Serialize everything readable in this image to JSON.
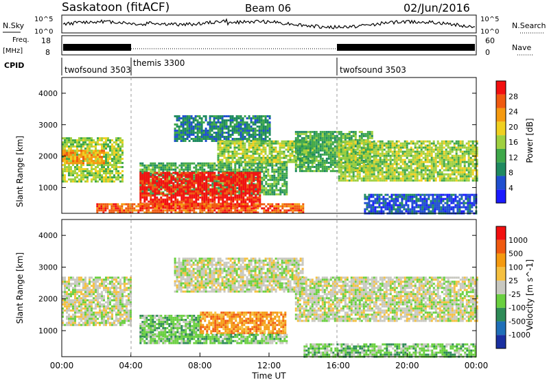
{
  "header": {
    "station": "Saskatoon (fitACF)",
    "beam": "Beam 06",
    "date": "02/Jun/2016"
  },
  "noise_panel": {
    "left_label": "N.Sky",
    "left_ticks": [
      "10^5",
      "10^0"
    ],
    "right_label": "N.Search",
    "right_ticks": [
      "10^5",
      "10^0"
    ]
  },
  "freq_panel": {
    "left_label_1": "Freq.",
    "left_label_2": "[MHz]",
    "left_ticks": [
      "18",
      "8"
    ],
    "right_label": "Nave",
    "right_ticks": [
      "60",
      "0"
    ]
  },
  "cpid_panel": {
    "label": "CPID",
    "segments": [
      {
        "name": "twofsound 3503",
        "start": 0,
        "end": 4
      },
      {
        "name": "themis 3300",
        "start": 4,
        "end": 16
      },
      {
        "name": "twofsound 3503",
        "start": 16,
        "end": 24
      }
    ]
  },
  "colors": {
    "power": [
      "#1a1aff",
      "#1f4fd0",
      "#1f8a60",
      "#3fa84a",
      "#9fd040",
      "#f0d020",
      "#f59a10",
      "#f05a10",
      "#f21010"
    ],
    "velocity": [
      "#1a2fa0",
      "#1f6fb8",
      "#2e8b57",
      "#6ad040",
      "#c8c8c0",
      "#f5c040",
      "#f59a10",
      "#f05a10",
      "#f21010"
    ]
  },
  "chart_data": [
    {
      "type": "heatmap",
      "title": "",
      "xlabel": "",
      "ylabel": "Slant Range [km]",
      "x_ticks": [],
      "y_ticks": [
        "1000",
        "2000",
        "3000",
        "4000"
      ],
      "xlim": [
        0,
        24
      ],
      "ylim": [
        180,
        4500
      ],
      "colorbar": {
        "label": "Power [dB]",
        "ticks": [
          "4",
          "8",
          "12",
          "16",
          "20",
          "24",
          "28"
        ]
      },
      "regions": [
        {
          "t0": 0.0,
          "t1": 3.5,
          "r0": 1200,
          "r1": 2600,
          "level": 4
        },
        {
          "t0": 0.0,
          "t1": 2.5,
          "r0": 1800,
          "r1": 2200,
          "level": 6
        },
        {
          "t0": 4.5,
          "t1": 13.0,
          "r0": 800,
          "r1": 1800,
          "level": 3
        },
        {
          "t0": 4.5,
          "t1": 11.5,
          "r0": 350,
          "r1": 1500,
          "level": 8
        },
        {
          "t0": 6.5,
          "t1": 12.0,
          "r0": 2500,
          "r1": 3300,
          "level": 2
        },
        {
          "t0": 9.0,
          "t1": 14.5,
          "r0": 1800,
          "r1": 2500,
          "level": 4
        },
        {
          "t0": 13.5,
          "t1": 18.0,
          "r0": 1500,
          "r1": 2800,
          "level": 3
        },
        {
          "t0": 16.0,
          "t1": 24.0,
          "r0": 1200,
          "r1": 2500,
          "level": 4
        },
        {
          "t0": 17.5,
          "t1": 24.0,
          "r0": 180,
          "r1": 800,
          "level": 1
        },
        {
          "t0": 2.0,
          "t1": 14.0,
          "r0": 180,
          "r1": 500,
          "level": 7
        }
      ]
    },
    {
      "type": "heatmap",
      "title": "",
      "xlabel": "Time UT",
      "ylabel": "Slant Range [km]",
      "x_ticks": [
        "00:00",
        "04:00",
        "08:00",
        "12:00",
        "16:00",
        "20:00",
        "00:00"
      ],
      "y_ticks": [
        "1000",
        "2000",
        "3000",
        "4000"
      ],
      "xlim": [
        0,
        24
      ],
      "ylim": [
        180,
        4500
      ],
      "colorbar": {
        "label": "Velocity [m s^-1]",
        "ticks": [
          "1000",
          "500",
          "100",
          "25",
          "-25",
          "-100",
          "-500",
          "-1000"
        ]
      },
      "regions": [
        {
          "t0": 0.0,
          "t1": 4.0,
          "r0": 1200,
          "r1": 2700,
          "level": 4
        },
        {
          "t0": 4.5,
          "t1": 8.0,
          "r0": 800,
          "r1": 1500,
          "level": 3
        },
        {
          "t0": 8.0,
          "t1": 13.0,
          "r0": 900,
          "r1": 1600,
          "level": 6
        },
        {
          "t0": 4.5,
          "t1": 13.0,
          "r0": 600,
          "r1": 900,
          "level": 3
        },
        {
          "t0": 6.5,
          "t1": 14.0,
          "r0": 2200,
          "r1": 3300,
          "level": 4
        },
        {
          "t0": 13.5,
          "t1": 24.0,
          "r0": 1300,
          "r1": 2700,
          "level": 4
        },
        {
          "t0": 14.0,
          "t1": 24.0,
          "r0": 180,
          "r1": 600,
          "level": 3
        }
      ]
    }
  ]
}
